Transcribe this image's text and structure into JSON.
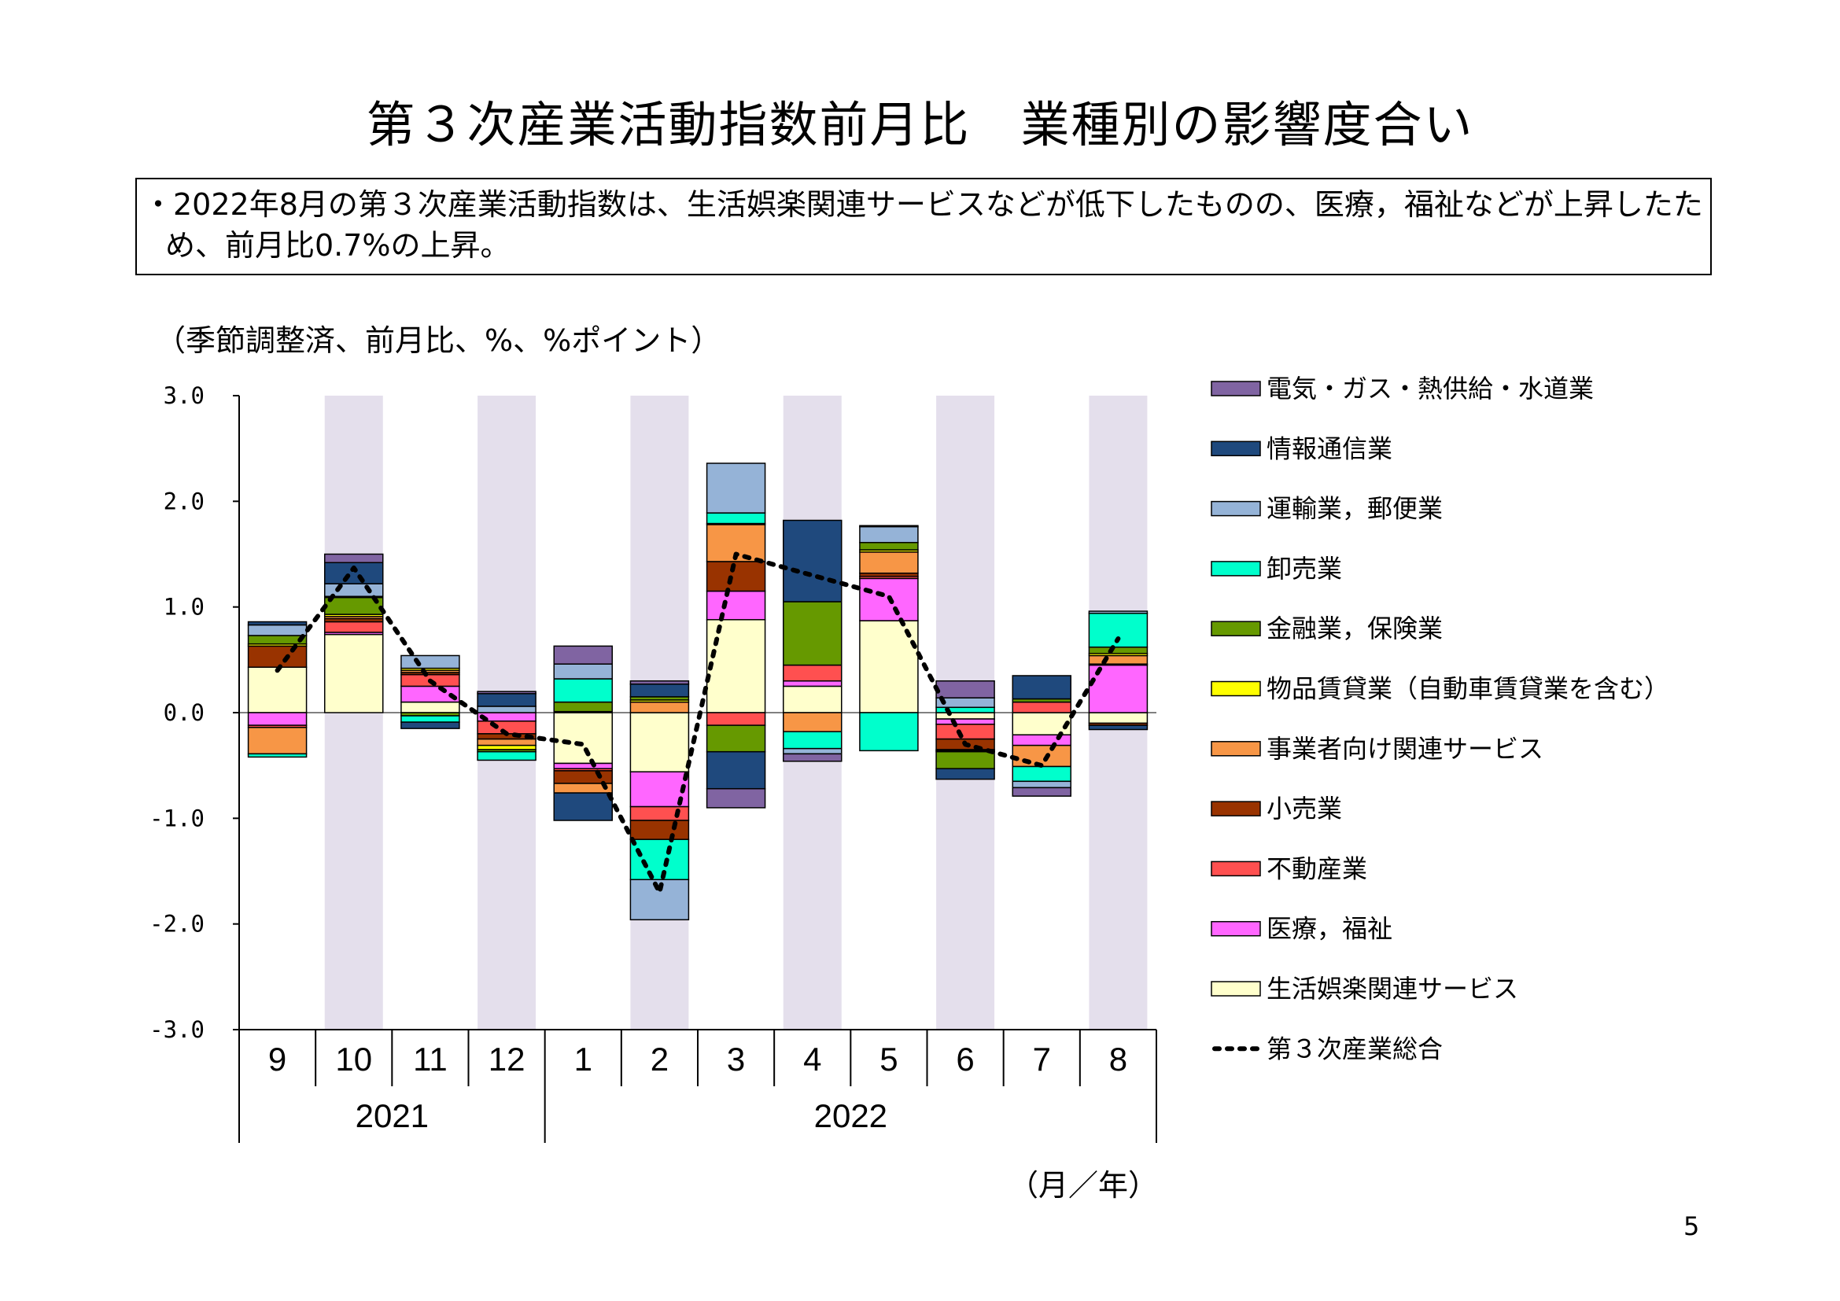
{
  "page": {
    "title": "第３次産業活動指数前月比　業種別の影響度合い",
    "summary": "・2022年8月の第３次産業活動指数は、生活娯楽関連サービスなどが低下したものの、医療，福祉などが上昇したため、前月比0.7%の上昇。",
    "unit_note": "（季節調整済、前月比、%、%ポイント）",
    "period_unit": "（月／年）",
    "page_number": "5"
  },
  "chart_data": {
    "type": "bar",
    "stacked": true,
    "title": "",
    "xlabel": "",
    "ylabel": "",
    "ylim": [
      -3.0,
      3.0
    ],
    "yticks": [
      "3.0",
      "2.0",
      "1.0",
      "0.0",
      "-1.0",
      "-2.0",
      "-3.0"
    ],
    "categories": [
      "9",
      "10",
      "11",
      "12",
      "1",
      "2",
      "3",
      "4",
      "5",
      "6",
      "7",
      "8"
    ],
    "years": [
      {
        "label": "2021",
        "span": 4
      },
      {
        "label": "2022",
        "span": 8
      }
    ],
    "shaded_categories": [
      "10",
      "12",
      "2",
      "4",
      "6",
      "8"
    ],
    "shade_color": "#e4dfec",
    "legend_position": "right",
    "series": [
      {
        "name": "生活娯楽関連サービス",
        "color": "#ffffcc",
        "values": [
          0.43,
          0.74,
          0.1,
          0.0,
          -0.48,
          -0.56,
          0.88,
          0.25,
          0.87,
          -0.06,
          -0.21,
          -0.1
        ]
      },
      {
        "name": "医療，福祉",
        "color": "#ff66ff",
        "values": [
          -0.12,
          0.02,
          0.15,
          -0.08,
          -0.05,
          -0.33,
          0.27,
          0.05,
          0.4,
          -0.05,
          -0.1,
          0.45
        ]
      },
      {
        "name": "不動産業",
        "color": "#ff5050",
        "values": [
          -0.02,
          0.1,
          0.11,
          -0.12,
          -0.02,
          -0.13,
          -0.12,
          0.15,
          0.02,
          -0.14,
          0.1,
          0.01
        ]
      },
      {
        "name": "小売業",
        "color": "#993300",
        "values": [
          0.2,
          0.03,
          0.02,
          -0.05,
          -0.12,
          -0.18,
          0.28,
          0.0,
          0.03,
          -0.1,
          0.0,
          -0.02
        ]
      },
      {
        "name": "事業者向け関連サービス",
        "color": "#f79646",
        "values": [
          -0.25,
          0.02,
          0.02,
          -0.06,
          -0.09,
          0.1,
          0.35,
          -0.18,
          0.2,
          -0.01,
          -0.2,
          0.08
        ]
      },
      {
        "name": "物品賃貸業（自動車賃貸業を含む）",
        "color": "#ffff00",
        "values": [
          0.02,
          0.02,
          0.02,
          -0.04,
          0.01,
          0.02,
          0.01,
          0.0,
          0.02,
          -0.01,
          0.0,
          0.02
        ]
      },
      {
        "name": "金融業，保険業",
        "color": "#669900",
        "values": [
          0.08,
          0.16,
          -0.03,
          -0.02,
          0.09,
          0.03,
          -0.25,
          0.6,
          0.07,
          -0.16,
          0.03,
          0.06
        ]
      },
      {
        "name": "卸売業",
        "color": "#00ffcc",
        "values": [
          -0.03,
          0.01,
          -0.06,
          -0.08,
          0.22,
          -0.38,
          0.1,
          -0.16,
          -0.36,
          0.05,
          -0.14,
          0.32
        ]
      },
      {
        "name": "運輸業，郵便業",
        "color": "#95b3d7",
        "values": [
          0.1,
          0.12,
          0.12,
          0.06,
          0.14,
          -0.38,
          0.47,
          -0.05,
          0.15,
          0.09,
          -0.06,
          0.02
        ]
      },
      {
        "name": "情報通信業",
        "color": "#1f497d",
        "values": [
          0.03,
          0.2,
          -0.06,
          0.12,
          -0.26,
          0.12,
          -0.35,
          0.77,
          0.01,
          -0.1,
          0.22,
          -0.04
        ]
      },
      {
        "name": "電気・ガス・熱供給・水道業",
        "color": "#8064a2",
        "values": [
          0.0,
          0.08,
          0.0,
          0.02,
          0.17,
          0.03,
          -0.18,
          -0.07,
          0.0,
          0.16,
          -0.08,
          0.0
        ]
      }
    ],
    "total_line": {
      "name": "第３次産業総合",
      "style": "dotted",
      "color": "#000000",
      "values": [
        0.4,
        1.37,
        0.3,
        -0.2,
        -0.3,
        -1.7,
        1.5,
        1.3,
        1.1,
        -0.3,
        -0.5,
        0.7
      ]
    },
    "legend_order": [
      "電気・ガス・熱供給・水道業",
      "情報通信業",
      "運輸業，郵便業",
      "卸売業",
      "金融業，保険業",
      "物品賃貸業（自動車賃貸業を含む）",
      "事業者向け関連サービス",
      "小売業",
      "不動産業",
      "医療，福祉",
      "生活娯楽関連サービス",
      "第３次産業総合"
    ]
  }
}
